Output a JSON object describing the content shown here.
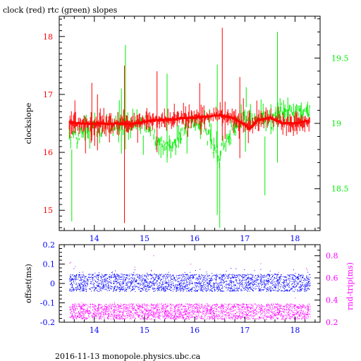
{
  "page": {
    "title": "clock (red) rtc (green) slopes",
    "footer": "2016-11-13 monopole.physics.ubc.ca"
  },
  "colors": {
    "clock": "#ff0000",
    "rtc": "#00ee00",
    "offset": "#0000ff",
    "rndtrip": "#ff00ff",
    "frame": "#000000"
  },
  "chart_data": [
    {
      "type": "line",
      "title": "clock (red) rtc (green) slopes",
      "ylabel": "clockslope",
      "y2label": "",
      "xlim": [
        13.3,
        18.5
      ],
      "ylim": [
        14.65,
        18.35
      ],
      "y2lim": [
        18.18,
        19.82
      ],
      "xticks": [
        "14",
        "15",
        "16",
        "17",
        "18"
      ],
      "yticks": [
        "15",
        "16",
        "17",
        "18"
      ],
      "y2ticks": [
        "18.5",
        "19",
        "19.5"
      ],
      "series": [
        {
          "name": "clock (red)",
          "axis": "left",
          "x": [
            13.5,
            13.75,
            14.0,
            14.25,
            14.5,
            14.75,
            15.0,
            15.25,
            15.5,
            15.75,
            16.0,
            16.25,
            16.5,
            16.75,
            17.0,
            17.1,
            17.25,
            17.5,
            17.75,
            18.0,
            18.3
          ],
          "values": [
            16.52,
            16.5,
            16.5,
            16.49,
            16.5,
            16.49,
            16.53,
            16.56,
            16.57,
            16.59,
            16.6,
            16.62,
            16.64,
            16.6,
            16.48,
            16.4,
            16.55,
            16.6,
            16.5,
            16.5,
            16.55
          ]
        },
        {
          "name": "rtc (green)",
          "axis": "right",
          "x": [
            13.5,
            13.75,
            14.0,
            14.25,
            14.5,
            14.75,
            15.0,
            15.25,
            15.5,
            15.75,
            16.0,
            16.25,
            16.5,
            16.75,
            17.0,
            17.25,
            17.5,
            17.75,
            18.0,
            18.3
          ],
          "values": [
            18.92,
            18.95,
            18.97,
            18.98,
            18.98,
            19.0,
            19.02,
            18.85,
            18.8,
            18.95,
            19.02,
            18.95,
            18.75,
            18.95,
            19.05,
            19.02,
            19.05,
            19.08,
            19.08,
            19.1
          ]
        }
      ]
    },
    {
      "type": "scatter",
      "ylabel": "offset(ms)",
      "y2label": "rnd-trip(ms)",
      "xlim": [
        13.3,
        18.5
      ],
      "ylim": [
        -0.2,
        0.2
      ],
      "y2lim": [
        0.2,
        0.9
      ],
      "xticks": [
        "14",
        "15",
        "16",
        "17",
        "18"
      ],
      "yticks": [
        "-0.2",
        "-0.1",
        "0",
        "0.1",
        "0.2"
      ],
      "y2ticks": [
        "0.2",
        "0.4",
        "0.6",
        "0.8"
      ],
      "series": [
        {
          "name": "offset",
          "axis": "left",
          "x_range": [
            13.5,
            18.3
          ],
          "mean": 0.0,
          "band": [
            -0.04,
            0.05
          ]
        },
        {
          "name": "rnd-trip",
          "axis": "right",
          "x_range": [
            13.5,
            18.3
          ],
          "mean": 0.3,
          "band": [
            0.23,
            0.37
          ]
        }
      ]
    }
  ]
}
